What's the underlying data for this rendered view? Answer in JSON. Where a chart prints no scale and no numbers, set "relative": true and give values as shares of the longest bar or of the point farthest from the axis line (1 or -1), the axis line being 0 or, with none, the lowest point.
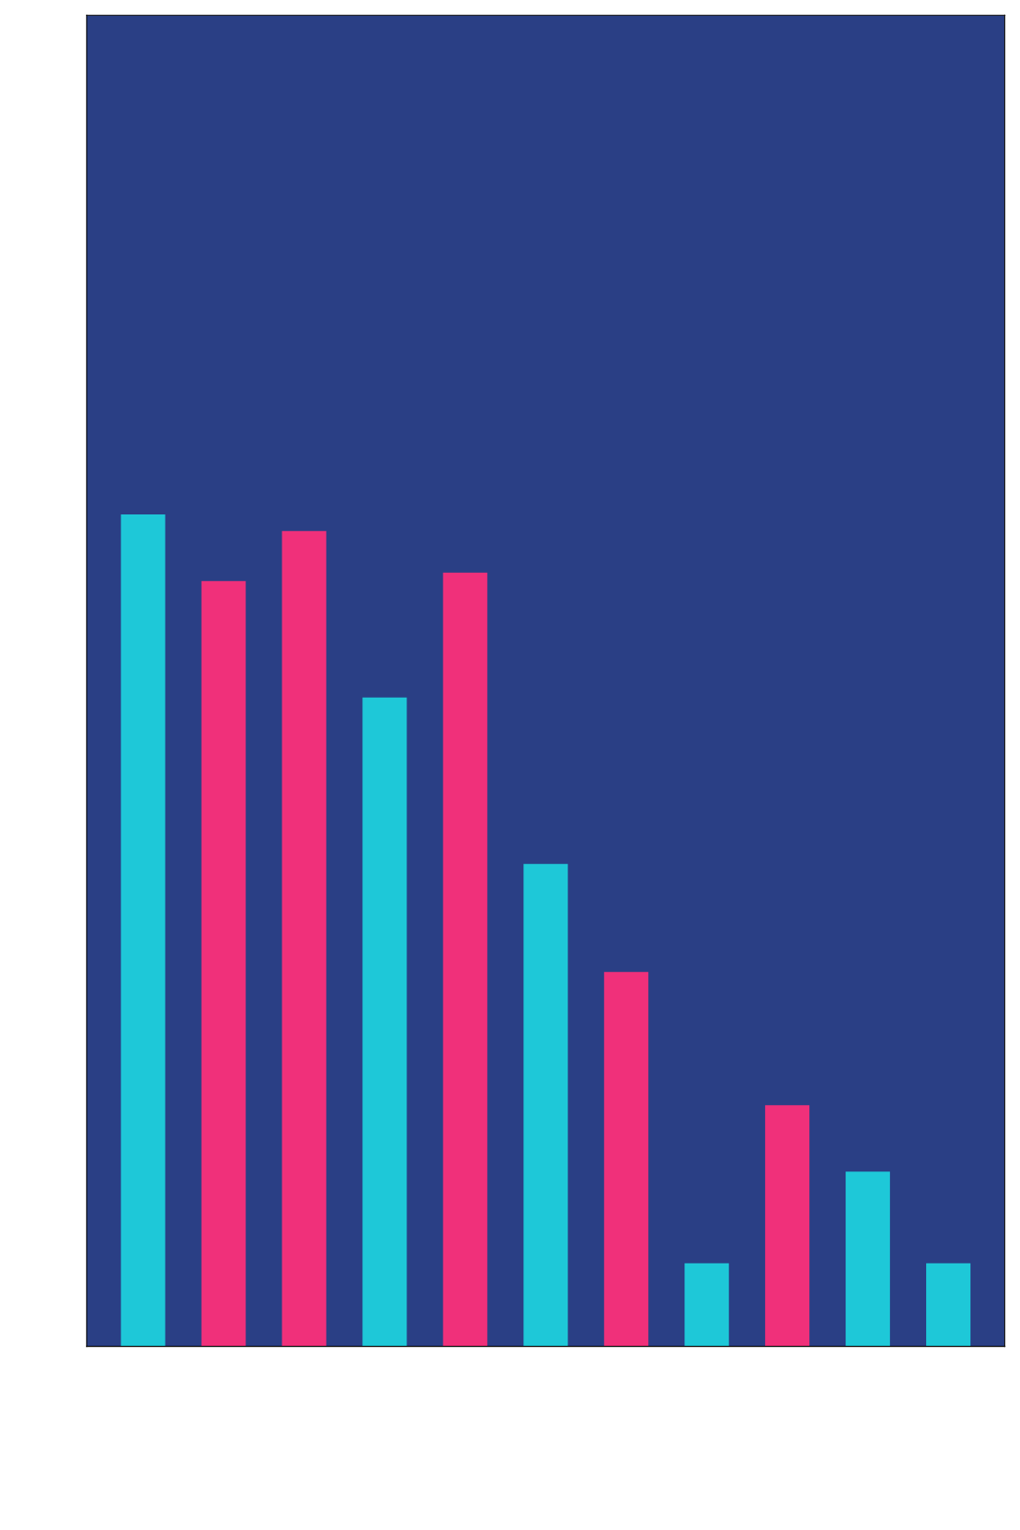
{
  "chart_data": {
    "type": "bar",
    "relative": true,
    "categories": [
      null,
      null,
      null,
      null,
      null,
      null,
      null,
      null,
      null,
      null,
      null
    ],
    "values": [
      1.0,
      0.92,
      0.98,
      0.78,
      0.93,
      0.58,
      0.45,
      0.1,
      0.29,
      0.21,
      0.1
    ],
    "colors": [
      "#1ec8d8",
      "#f0307a",
      "#f0307a",
      "#1ec8d8",
      "#f0307a",
      "#1ec8d8",
      "#f0307a",
      "#1ec8d8",
      "#f0307a",
      "#1ec8d8",
      "#1ec8d8"
    ]
  }
}
